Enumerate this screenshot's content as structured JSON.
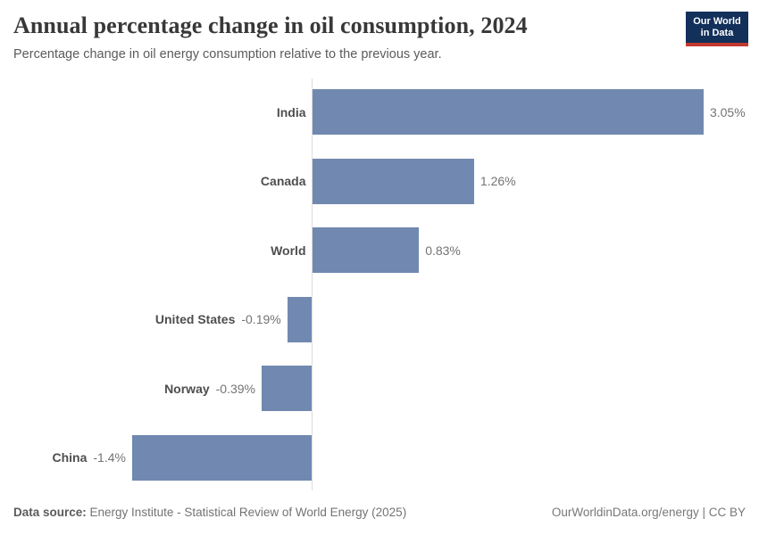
{
  "header": {
    "title": "Annual percentage change in oil consumption, 2024",
    "subtitle": "Percentage change in oil energy consumption relative to the previous year."
  },
  "logo": {
    "line1": "Our World",
    "line2": "in Data",
    "bg_color": "#12305a",
    "accent_color": "#c4392f"
  },
  "chart_data": {
    "type": "bar",
    "orientation": "horizontal",
    "title": "Annual percentage change in oil consumption, 2024",
    "categories": [
      "India",
      "Canada",
      "World",
      "United States",
      "Norway",
      "China"
    ],
    "values": [
      3.05,
      1.26,
      0.83,
      -0.19,
      -0.39,
      -1.4
    ],
    "value_labels": [
      "3.05%",
      "1.26%",
      "0.83%",
      "-0.19%",
      "-0.39%",
      "-1.4%"
    ],
    "unit": "%",
    "xlim": [
      -1.4,
      3.05
    ],
    "grid": "off",
    "bar_color": "#7189b0",
    "axis_color": "#dcdcdc"
  },
  "footer": {
    "datasource_label": "Data source:",
    "datasource_text": " Energy Institute - Statistical Review of World Energy (2025)",
    "right_text": "OurWorldinData.org/energy | CC BY"
  }
}
